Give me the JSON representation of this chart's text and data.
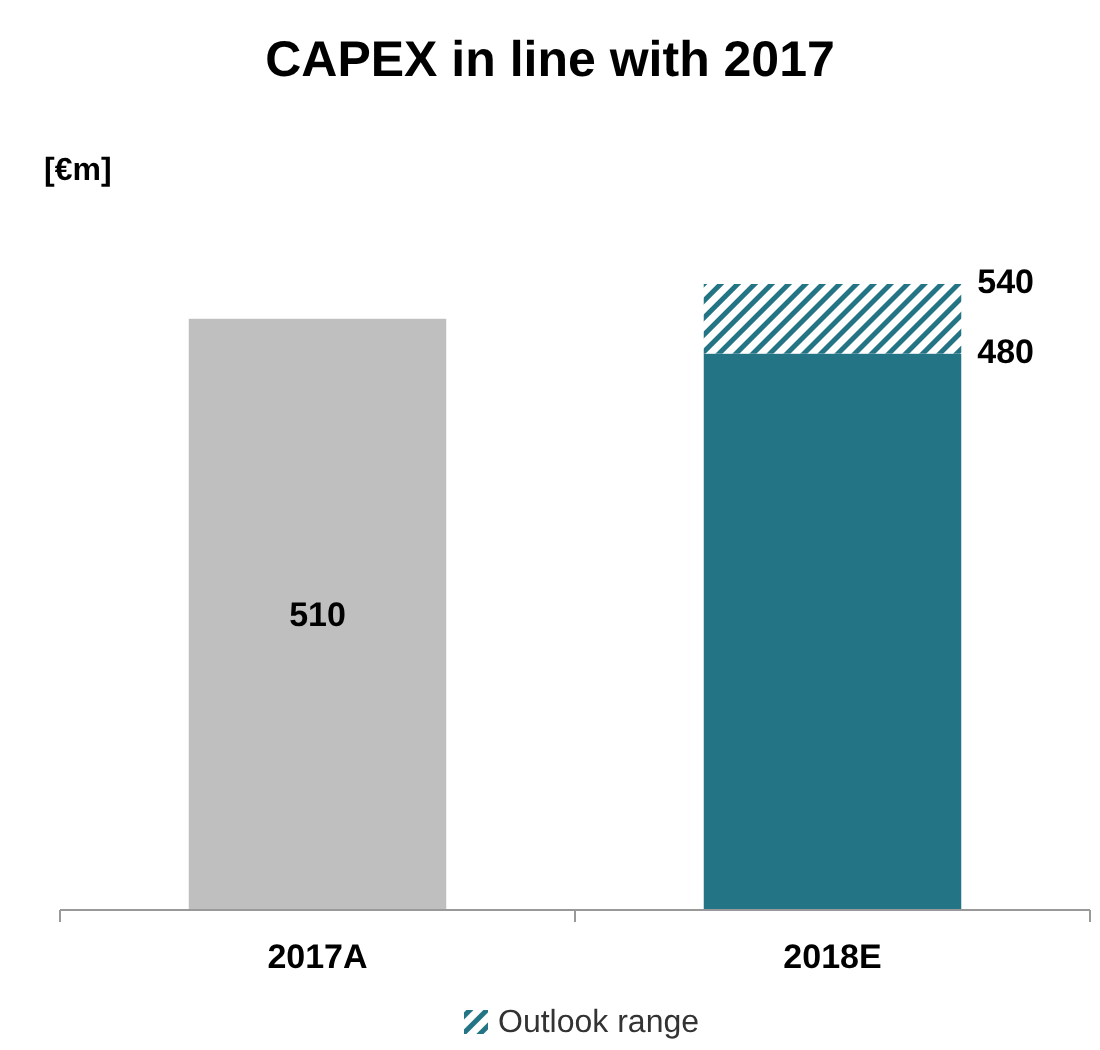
{
  "chart_data": {
    "type": "bar",
    "title": "CAPEX in line with 2017",
    "ylabel": "[€m]",
    "categories": [
      "2017A",
      "2018E"
    ],
    "stacked": true,
    "legend": "bottom",
    "series": [
      {
        "colors": [
          "#bfbfbf",
          "#237585"
        ],
        "values": [
          510,
          480
        ],
        "value_labels": [
          "510",
          null
        ]
      },
      {
        "name": "Outlook range",
        "color": "#237585",
        "values": [
          null,
          60
        ]
      }
    ],
    "annotations": [
      "540",
      "480"
    ]
  }
}
